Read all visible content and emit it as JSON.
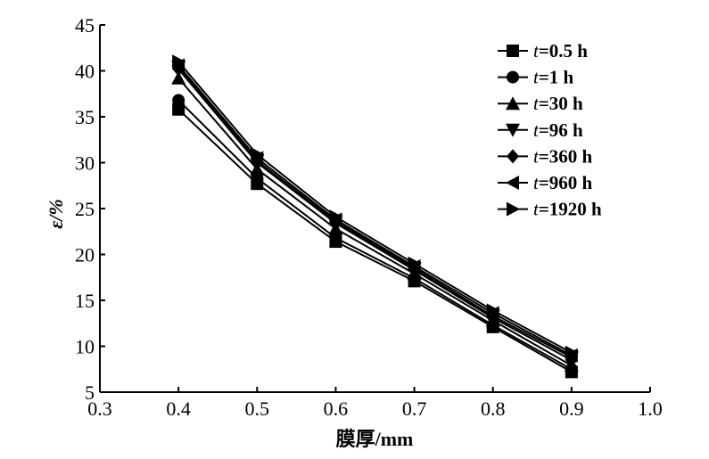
{
  "chart_data": {
    "type": "line",
    "title": "",
    "xlabel": "膜厚/mm",
    "ylabel": "ε/%",
    "xlim": [
      0.3,
      1.0
    ],
    "ylim": [
      5,
      45
    ],
    "xticks": [
      "0.3",
      "0.4",
      "0.5",
      "0.6",
      "0.7",
      "0.8",
      "0.9",
      "1.0"
    ],
    "yticks": [
      "5",
      "10",
      "15",
      "20",
      "25",
      "30",
      "35",
      "40",
      "45"
    ],
    "grid": false,
    "legend_position": "top-right",
    "x": [
      0.4,
      0.5,
      0.6,
      0.7,
      0.8,
      0.9
    ],
    "series": [
      {
        "name": "t=0.5 h",
        "prefix": "t",
        "suffix": "=0.5 h",
        "marker": "square",
        "values": [
          35.8,
          27.7,
          21.4,
          17.1,
          12.1,
          7.2
        ]
      },
      {
        "name": "t=1 h",
        "prefix": "t",
        "suffix": "=1 h",
        "marker": "circle",
        "values": [
          36.8,
          28.3,
          21.8,
          17.4,
          12.3,
          7.5
        ]
      },
      {
        "name": "t=30 h",
        "prefix": "t",
        "suffix": "=30 h",
        "marker": "triangle-up",
        "values": [
          39.2,
          29.3,
          22.8,
          17.9,
          12.8,
          7.9
        ]
      },
      {
        "name": "t=96 h",
        "prefix": "t",
        "suffix": "=96 h",
        "marker": "triangle-down",
        "values": [
          40.4,
          30.2,
          23.6,
          18.5,
          13.3,
          8.8
        ]
      },
      {
        "name": "t=360 h",
        "prefix": "t",
        "suffix": "=360 h",
        "marker": "diamond",
        "values": [
          40.2,
          30.0,
          23.4,
          18.3,
          13.1,
          8.5
        ]
      },
      {
        "name": "t=960 h",
        "prefix": "t",
        "suffix": "=960 h",
        "marker": "triangle-left",
        "values": [
          40.6,
          30.5,
          23.8,
          18.7,
          13.6,
          9.0
        ]
      },
      {
        "name": "t=1920 h",
        "prefix": "t",
        "suffix": "=1920 h",
        "marker": "triangle-right",
        "values": [
          41.0,
          30.9,
          24.1,
          19.0,
          13.9,
          9.3
        ]
      }
    ]
  }
}
